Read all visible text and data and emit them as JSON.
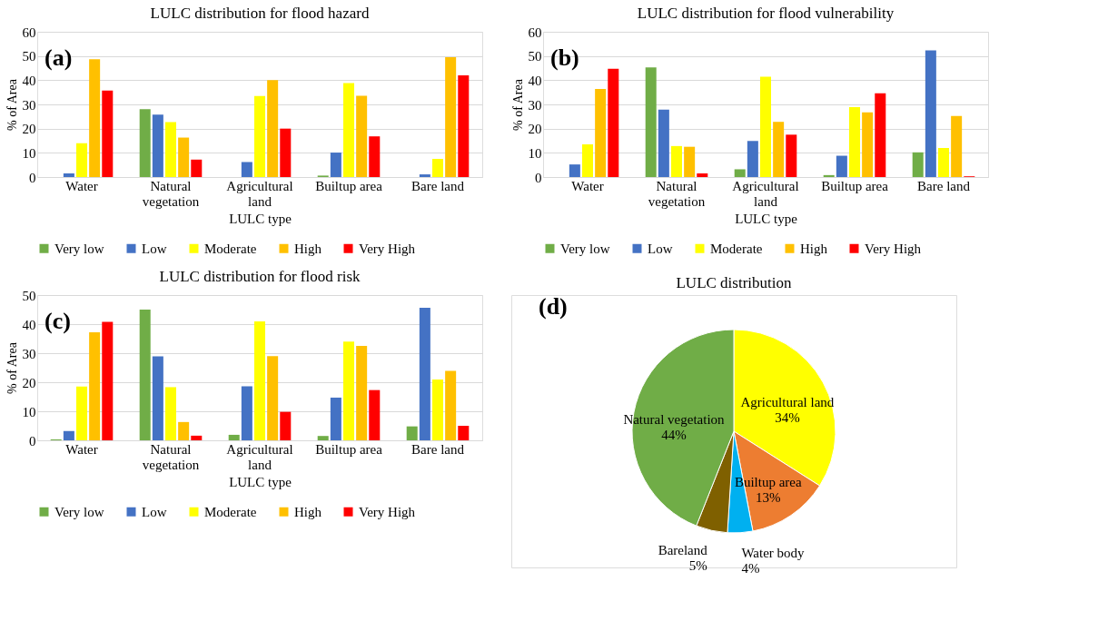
{
  "chart_data": [
    {
      "type": "bar",
      "title": "LULC distribution for flood hazard",
      "xlabel": "LULC type",
      "ylabel": "% of Area",
      "annotations": [
        "(a)"
      ],
      "categories": [
        "Water",
        "Natural vegetation",
        "Agricultural land",
        "Builtup area",
        "Bare land"
      ],
      "series": [
        {
          "name": "Very low",
          "color": "#70ad47",
          "values": [
            0,
            28,
            0,
            0.6,
            0
          ]
        },
        {
          "name": "Low",
          "color": "#4472c4",
          "values": [
            1.5,
            25.8,
            6.2,
            10.1,
            1.1
          ]
        },
        {
          "name": "Moderate",
          "color": "#ffff00",
          "values": [
            14,
            22.7,
            33.5,
            38.8,
            7.5
          ]
        },
        {
          "name": "High",
          "color": "#ffc000",
          "values": [
            48.7,
            16.3,
            40,
            33.6,
            49.5
          ]
        },
        {
          "name": "Very High",
          "color": "#ff0000",
          "values": [
            35.7,
            7.2,
            20,
            16.8,
            42
          ]
        }
      ],
      "ylim": [
        0,
        60
      ],
      "yticks": [
        0,
        10,
        20,
        30,
        40,
        50,
        60
      ],
      "grid": "y",
      "legend": "bottom"
    },
    {
      "type": "bar",
      "title": "LULC distribution for flood vulnerability",
      "xlabel": "LULC type",
      "ylabel": "% of Area",
      "annotations": [
        "(b)"
      ],
      "categories": [
        "Water",
        "Natural vegetation",
        "Agricultural land",
        "Builtup area",
        "Bare land"
      ],
      "series": [
        {
          "name": "Very low",
          "color": "#70ad47",
          "values": [
            0,
            45.3,
            3.2,
            0.8,
            10.2
          ]
        },
        {
          "name": "Low",
          "color": "#4472c4",
          "values": [
            5.2,
            27.8,
            14.9,
            8.8,
            52.3
          ]
        },
        {
          "name": "Moderate",
          "color": "#ffff00",
          "values": [
            13.5,
            12.8,
            41.4,
            28.9,
            12
          ]
        },
        {
          "name": "High",
          "color": "#ffc000",
          "values": [
            36.4,
            12.5,
            22.8,
            26.7,
            25.2
          ]
        },
        {
          "name": "Very High",
          "color": "#ff0000",
          "values": [
            44.7,
            1.5,
            17.5,
            34.6,
            0.3
          ]
        }
      ],
      "ylim": [
        0,
        60
      ],
      "yticks": [
        0,
        10,
        20,
        30,
        40,
        50,
        60
      ],
      "grid": "y",
      "legend": "bottom"
    },
    {
      "type": "bar",
      "title": "LULC distribution for flood risk",
      "xlabel": "LULC type",
      "ylabel": "% of Area",
      "annotations": [
        "(c)"
      ],
      "categories": [
        "Water",
        "Natural vegetation",
        "Agricultural land",
        "Builtup area",
        "Bare land"
      ],
      "series": [
        {
          "name": "Very low",
          "color": "#70ad47",
          "values": [
            0.3,
            45,
            1.9,
            1.5,
            4.8
          ]
        },
        {
          "name": "Low",
          "color": "#4472c4",
          "values": [
            3.2,
            28.9,
            18.6,
            14.7,
            45.6
          ]
        },
        {
          "name": "Moderate",
          "color": "#ffff00",
          "values": [
            18.5,
            18.3,
            40.9,
            34,
            20.9
          ]
        },
        {
          "name": "High",
          "color": "#ffc000",
          "values": [
            37.2,
            6.3,
            29,
            32.5,
            23.9
          ]
        },
        {
          "name": "Very High",
          "color": "#ff0000",
          "values": [
            40.8,
            1.6,
            9.8,
            17.3,
            5
          ]
        }
      ],
      "ylim": [
        0,
        50
      ],
      "yticks": [
        0,
        10,
        20,
        30,
        40,
        50
      ],
      "grid": "y",
      "legend": "bottom"
    },
    {
      "type": "pie",
      "title": "LULC distribution",
      "annotations": [
        "(d)"
      ],
      "categories": [
        "Agricultural land",
        "Builtup area",
        "Water body",
        "Bareland",
        "Natural vegetation"
      ],
      "values": [
        34,
        13,
        4,
        5,
        44
      ],
      "value_labels": [
        "34%",
        "13%",
        "4%",
        "5%",
        "44%"
      ],
      "colors": [
        "#ffff00",
        "#ed7d31",
        "#00b0f0",
        "#7f6000",
        "#70ad47"
      ]
    }
  ]
}
